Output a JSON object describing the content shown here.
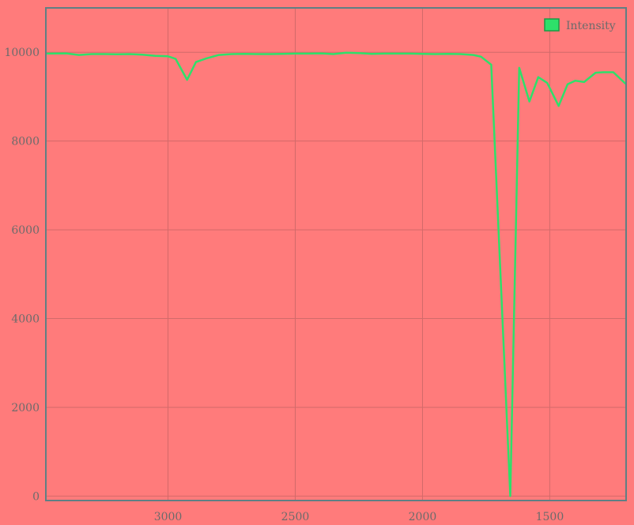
{
  "colors": {
    "background": "#ff7b7b",
    "line": "#2ee06a",
    "axis": "#5f7f84",
    "grid": "#d26a6a",
    "tick_text": "#6b6b6b"
  },
  "chart_data": {
    "type": "line",
    "title": "",
    "xlabel": "",
    "ylabel": "",
    "x_reversed": true,
    "xlim": [
      3480,
      1200
    ],
    "ylim": [
      -100,
      11000
    ],
    "x_ticks": [
      3000,
      2500,
      2000,
      1500
    ],
    "y_ticks": [
      0,
      2000,
      4000,
      6000,
      8000,
      10000
    ],
    "grid": true,
    "legend_position": "top-right",
    "series": [
      {
        "name": "Intensity",
        "x": [
          3480,
          3400,
          3350,
          3300,
          3250,
          3200,
          3150,
          3100,
          3050,
          3000,
          2970,
          2925,
          2890,
          2850,
          2800,
          2750,
          2700,
          2650,
          2600,
          2550,
          2500,
          2450,
          2400,
          2350,
          2300,
          2250,
          2200,
          2150,
          2100,
          2050,
          2000,
          1950,
          1900,
          1850,
          1800,
          1770,
          1730,
          1655,
          1620,
          1580,
          1545,
          1510,
          1465,
          1430,
          1400,
          1365,
          1320,
          1290,
          1250,
          1200
        ],
        "y": [
          9970,
          9975,
          9940,
          9960,
          9960,
          9955,
          9960,
          9945,
          9920,
          9910,
          9850,
          9380,
          9780,
          9860,
          9940,
          9960,
          9965,
          9960,
          9960,
          9965,
          9970,
          9970,
          9975,
          9960,
          9990,
          9980,
          9965,
          9970,
          9970,
          9970,
          9965,
          9960,
          9965,
          9960,
          9940,
          9900,
          9720,
          0,
          9650,
          8890,
          9440,
          9310,
          8790,
          9280,
          9360,
          9330,
          9540,
          9550,
          9550,
          9280
        ]
      }
    ]
  }
}
